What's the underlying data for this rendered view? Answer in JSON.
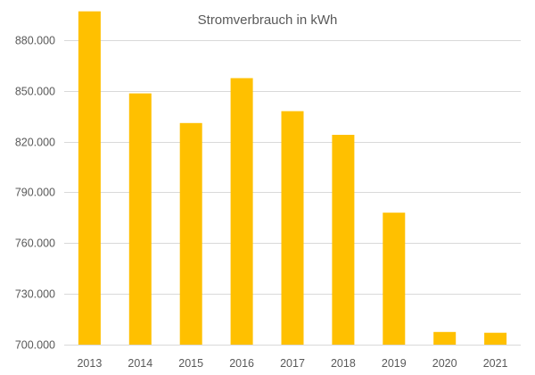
{
  "chart_data": {
    "type": "bar",
    "title": "Stromverbrauch in kWh",
    "xlabel": "",
    "ylabel": "",
    "categories": [
      "2013",
      "2014",
      "2015",
      "2016",
      "2017",
      "2018",
      "2019",
      "2020",
      "2021"
    ],
    "values": [
      897000,
      848500,
      831000,
      857500,
      838000,
      824000,
      778000,
      707500,
      707000
    ],
    "ylim": [
      700000,
      900000
    ],
    "yticks": [
      700000,
      730000,
      760000,
      790000,
      820000,
      850000,
      880000
    ],
    "ytick_labels": [
      "700.000",
      "730.000",
      "760.000",
      "790.000",
      "820.000",
      "850.000",
      "880.000"
    ],
    "grid": true,
    "legend": "none",
    "bar_color": "#FFC000",
    "grid_color": "#D9D9D9",
    "text_color": "#595959"
  }
}
